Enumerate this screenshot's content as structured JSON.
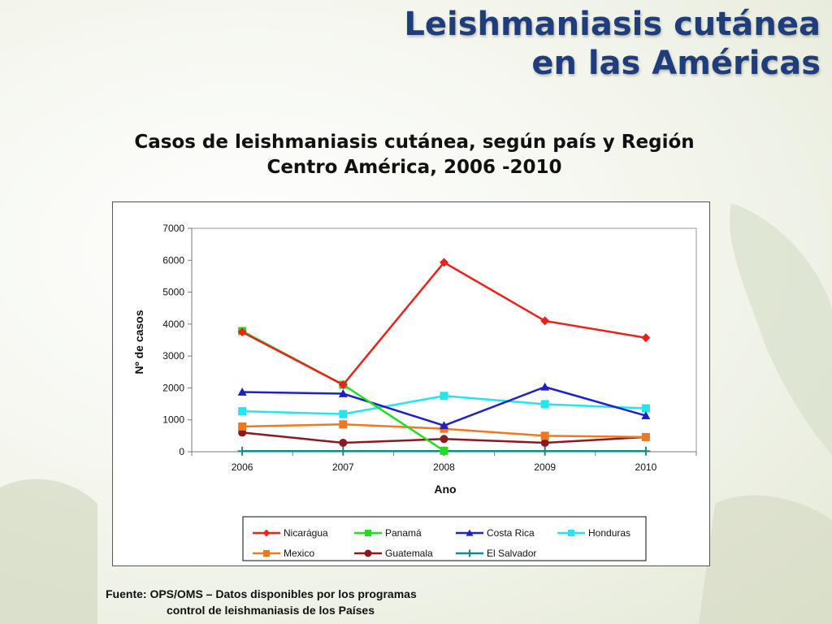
{
  "slide": {
    "title_line1": "Leishmaniasis cutánea",
    "title_line2": "en las Américas",
    "subtitle_line1": "Casos de leishmaniasis cutánea, según país y Región",
    "subtitle_line2": "Centro América, 2006 -2010",
    "source_line1": "Fuente:  OPS/OMS – Datos disponibles por los programas",
    "source_line2": "control de leishmaniasis de los Países"
  },
  "chart_data": {
    "type": "line",
    "title": "",
    "xlabel": "Ano",
    "ylabel": "Nº de casos",
    "x": [
      "2006",
      "2007",
      "2008",
      "2009",
      "2010"
    ],
    "ylim": [
      0,
      7000
    ],
    "yticks": [
      "0",
      "1000",
      "2000",
      "3000",
      "4000",
      "5000",
      "6000",
      "7000"
    ],
    "grid": false,
    "legend_position": "bottom",
    "series": [
      {
        "name": "Nicarágua",
        "color": "#e8221c",
        "marker": "diamond",
        "values": [
          3750,
          2100,
          5930,
          4100,
          3570
        ]
      },
      {
        "name": "Panamá",
        "color": "#22dd22",
        "marker": "square",
        "values": [
          3780,
          2100,
          30,
          null,
          null
        ]
      },
      {
        "name": "Costa Rica",
        "color": "#1c22c8",
        "marker": "triangle",
        "values": [
          1870,
          1820,
          820,
          2030,
          1130
        ]
      },
      {
        "name": "Honduras",
        "color": "#22e6ee",
        "marker": "square",
        "values": [
          1270,
          1180,
          1750,
          1490,
          1360
        ]
      },
      {
        "name": "Mexico",
        "color": "#f07820",
        "marker": "square",
        "values": [
          790,
          860,
          720,
          500,
          460
        ]
      },
      {
        "name": "Guatemala",
        "color": "#8a1a22",
        "marker": "circle",
        "values": [
          600,
          280,
          400,
          280,
          460
        ]
      },
      {
        "name": "El Salvador",
        "color": "#148a88",
        "marker": "plus",
        "values": [
          20,
          20,
          20,
          20,
          20
        ]
      }
    ]
  }
}
